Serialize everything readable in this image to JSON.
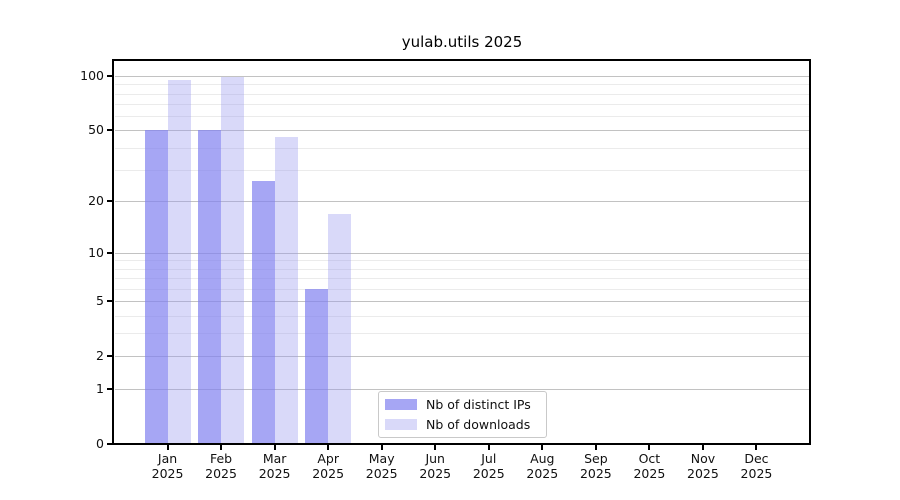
{
  "chart_data": {
    "type": "bar",
    "title": "yulab.utils 2025",
    "categories": [
      "Jan 2025",
      "Feb 2025",
      "Mar 2025",
      "Apr 2025",
      "May 2025",
      "Jun 2025",
      "Jul 2025",
      "Aug 2025",
      "Sep 2025",
      "Oct 2025",
      "Nov 2025",
      "Dec 2025"
    ],
    "series": [
      {
        "name": "Nb of distinct IPs",
        "values": [
          50,
          50,
          26,
          6,
          0,
          0,
          0,
          0,
          0,
          0,
          0,
          0
        ],
        "color": "#a6a6f6",
        "color_rgba": "rgba(128,128,240,0.7)"
      },
      {
        "name": "Nb of downloads",
        "values": [
          95,
          99,
          46,
          17,
          0,
          0,
          0,
          0,
          0,
          0,
          0,
          0
        ],
        "color": "#d9d9f8",
        "color_rgba": "rgba(153,153,240,0.37)"
      }
    ],
    "yscale": "log1p",
    "ylim": [
      0,
      122
    ],
    "yticks": [
      0,
      1,
      2,
      5,
      10,
      20,
      50,
      100
    ],
    "yticks_minor": [
      3,
      4,
      6,
      7,
      8,
      9,
      30,
      40,
      60,
      70,
      80,
      90
    ],
    "grid": "horizontal-only",
    "legend_position": "lower-center-inside",
    "background_color": "#ffffff",
    "gridline_major_color": "#c2c2c2",
    "gridline_minor_color": "#ebebeb"
  }
}
